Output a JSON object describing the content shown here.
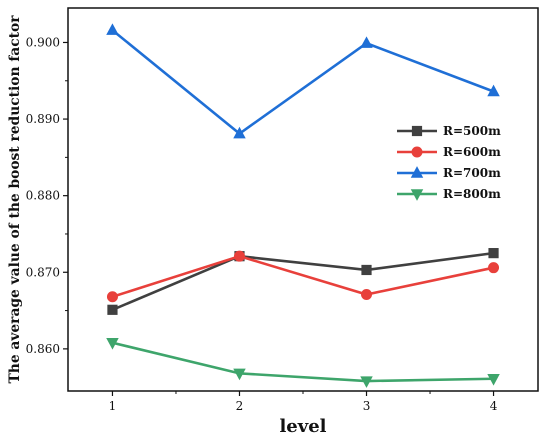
{
  "chart_data": {
    "type": "line",
    "xlabel": "level",
    "ylabel": "The average value of the boost reduction factor",
    "x": [
      1,
      2,
      3,
      4
    ],
    "xticks": [
      "1",
      "2",
      "3",
      "4"
    ],
    "xlim": [
      0.65,
      4.35
    ],
    "ylim": [
      0.8545,
      0.9045
    ],
    "yticks": [
      0.86,
      0.87,
      0.88,
      0.89,
      0.9
    ],
    "ytick_labels": [
      "0.860",
      "0.870",
      "0.880",
      "0.890",
      "0.900"
    ],
    "grid": false,
    "legend_position": "right",
    "series": [
      {
        "name": "R=500m",
        "color": "#404040",
        "marker": "square",
        "values": [
          0.8651,
          0.8721,
          0.8703,
          0.8725
        ]
      },
      {
        "name": "R=600m",
        "color": "#e8403b",
        "marker": "circle",
        "values": [
          0.8668,
          0.8721,
          0.8671,
          0.8706
        ]
      },
      {
        "name": "R=700m",
        "color": "#1f6fd6",
        "marker": "triangle-up",
        "values": [
          0.9016,
          0.8881,
          0.8999,
          0.8936
        ]
      },
      {
        "name": "R=800m",
        "color": "#3ea56b",
        "marker": "triangle-down",
        "values": [
          0.8608,
          0.8568,
          0.8558,
          0.8561
        ]
      }
    ]
  }
}
